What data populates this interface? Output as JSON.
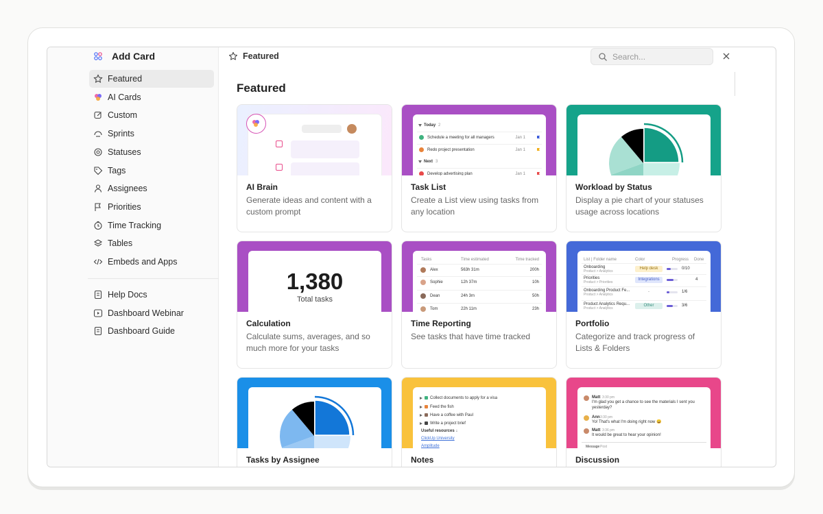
{
  "sidebar": {
    "title": "Add Card",
    "items": [
      "Featured",
      "AI Cards",
      "Custom",
      "Sprints",
      "Statuses",
      "Tags",
      "Assignees",
      "Priorities",
      "Time Tracking",
      "Tables",
      "Embeds and Apps"
    ],
    "links": [
      "Help Docs",
      "Dashboard Webinar",
      "Dashboard Guide"
    ]
  },
  "topbar": {
    "title": "Featured",
    "search_placeholder": "Search..."
  },
  "section_title": "Featured",
  "cards": [
    {
      "title": "AI Brain",
      "description": "Generate ideas and content with a custom prompt"
    },
    {
      "title": "Task List",
      "description": "Create a List view using tasks from any location",
      "preview": {
        "groups": [
          {
            "name": "Today",
            "count": "2",
            "tasks": [
              {
                "name": "Schedule a meeting for all managers",
                "date": "Jan 1"
              },
              {
                "name": "Redo project presentation",
                "date": "Jan 1"
              }
            ]
          },
          {
            "name": "Next",
            "count": "3",
            "tasks": [
              {
                "name": "Develop advertising plan",
                "date": "Jan 1"
              }
            ]
          }
        ]
      }
    },
    {
      "title": "Workload by Status",
      "description": "Display a pie chart of your statuses usage across locations"
    },
    {
      "title": "Calculation",
      "description": "Calculate sums, averages, and so much more for your tasks",
      "preview": {
        "value": "1,380",
        "label": "Total tasks"
      }
    },
    {
      "title": "Time Reporting",
      "description": "See tasks that have time tracked",
      "preview": {
        "columns": [
          "Tasks",
          "Time estimated",
          "Time tracked"
        ],
        "rows": [
          [
            "Alex",
            "563h 31m",
            "200h"
          ],
          [
            "Sophie",
            "12h 37m",
            "10h"
          ],
          [
            "Dean",
            "24h 3m",
            "50h"
          ],
          [
            "Tom",
            "22h 11m",
            "23h"
          ]
        ]
      }
    },
    {
      "title": "Portfolio",
      "description": "Categorize and track progress of Lists & Folders",
      "preview": {
        "columns": [
          "List | Folder name",
          "Color",
          "Progress",
          "Done"
        ],
        "rows": [
          {
            "name": "Onboarding",
            "path": "Product > Analytics",
            "tag": "Help desk",
            "done": "0/10"
          },
          {
            "name": "Priorities",
            "path": "Product > Priorities",
            "tag": "Integrations",
            "done": "4"
          },
          {
            "name": "Onboarding Product Fe...",
            "path": "Product > Analytics",
            "tag": "-",
            "done": "1/6"
          },
          {
            "name": "Product Analytics Requ...",
            "path": "Product > Analytics",
            "tag": "Other",
            "done": "3/6"
          }
        ]
      }
    },
    {
      "title": "Tasks by Assignee"
    },
    {
      "title": "Notes",
      "preview": {
        "items": [
          "Collect documents to apply for a visa",
          "Feed the fish",
          "Have a coffee with Paul",
          "Write a project brief"
        ],
        "heading": "Useful resources ↓",
        "links": [
          "ClickUp University",
          "Amplitude"
        ]
      }
    },
    {
      "title": "Discussion",
      "preview": {
        "messages": [
          {
            "author": "Matt",
            "time": "3:30 pm",
            "text": "I'm glad you get a chance to see the materials I sent you yesterday?"
          },
          {
            "author": "Ann",
            "time": "3:30 pm",
            "text": "Yo! That's what I'm doing right now 😄"
          },
          {
            "author": "Matt",
            "time": "3:36 pm",
            "text": "It would be great to hear your opinion!"
          }
        ],
        "tabs": [
          "Message",
          "Post"
        ]
      }
    }
  ]
}
